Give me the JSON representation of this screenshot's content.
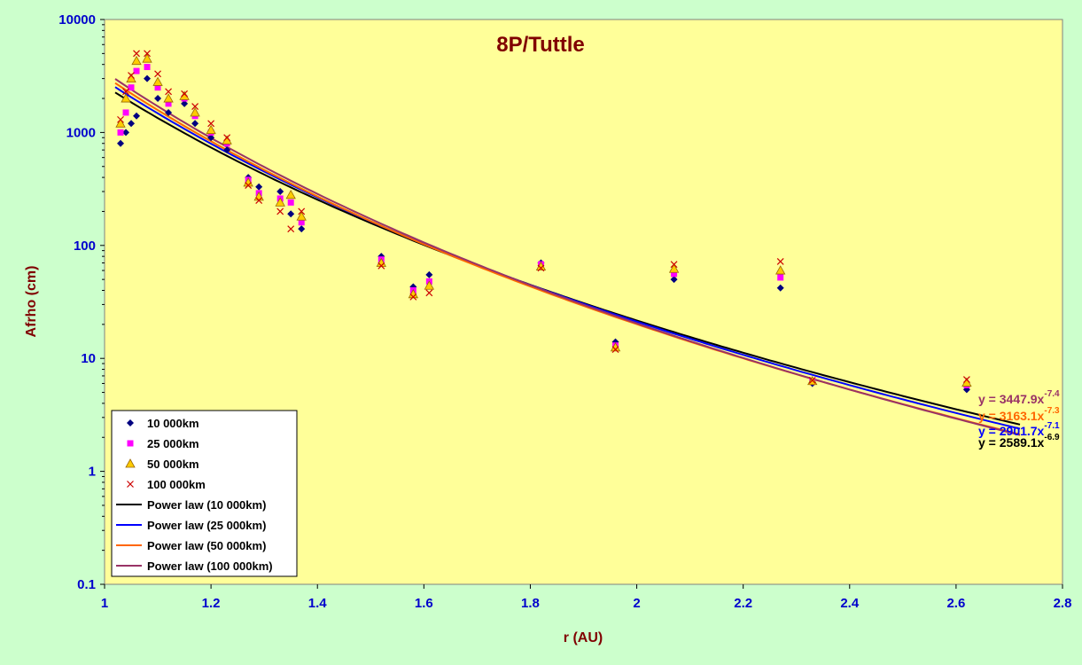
{
  "chart_data": {
    "type": "scatter",
    "title": "8P/Tuttle",
    "xlabel": "r (AU)",
    "ylabel": "Afrho (cm)",
    "xlim": [
      1,
      2.8
    ],
    "ylim": [
      0.1,
      10000
    ],
    "yscale": "log",
    "x_ticks": [
      "1",
      "1.2",
      "1.4",
      "1.6",
      "1.8",
      "2",
      "2.2",
      "2.4",
      "2.6",
      "2.8"
    ],
    "y_ticks": [
      "0.1",
      "1",
      "10",
      "100",
      "1000",
      "10000"
    ],
    "grid": false,
    "legend_position": "bottom-left",
    "colors": {
      "page_bg": "#ccffcc",
      "plot_bg": "#ffff99",
      "title": "#800000",
      "axis_labels": "#800000",
      "tick_labels": "#0000cc"
    },
    "series": [
      {
        "name": "10 000km",
        "marker": "diamond",
        "color": "#000080",
        "x": [
          1.03,
          1.04,
          1.05,
          1.06,
          1.08,
          1.1,
          1.12,
          1.15,
          1.17,
          1.2,
          1.23,
          1.27,
          1.29,
          1.33,
          1.35,
          1.37,
          1.52,
          1.58,
          1.61,
          1.82,
          1.96,
          2.07,
          2.27,
          2.33,
          2.62
        ],
        "y": [
          800,
          1000,
          1200,
          1400,
          3000,
          2000,
          1500,
          1800,
          1200,
          900,
          700,
          400,
          330,
          300,
          190,
          140,
          80,
          43,
          55,
          70,
          14,
          50,
          42,
          6,
          5.3
        ]
      },
      {
        "name": "25 000km",
        "marker": "square",
        "color": "#ff00ff",
        "x": [
          1.03,
          1.04,
          1.05,
          1.06,
          1.08,
          1.1,
          1.12,
          1.15,
          1.17,
          1.2,
          1.23,
          1.27,
          1.29,
          1.33,
          1.35,
          1.37,
          1.52,
          1.58,
          1.61,
          1.82,
          1.96,
          2.07,
          2.27,
          2.33,
          2.62
        ],
        "y": [
          1000,
          1500,
          2500,
          3500,
          3800,
          2500,
          1800,
          2000,
          1400,
          1000,
          800,
          380,
          290,
          260,
          240,
          160,
          75,
          40,
          48,
          68,
          13,
          56,
          52,
          6.2,
          5.8
        ]
      },
      {
        "name": "50 000km",
        "marker": "triangle",
        "color": "#ffcc00",
        "x": [
          1.03,
          1.04,
          1.05,
          1.06,
          1.08,
          1.1,
          1.12,
          1.15,
          1.17,
          1.2,
          1.23,
          1.27,
          1.29,
          1.33,
          1.35,
          1.37,
          1.52,
          1.58,
          1.61,
          1.82,
          1.96,
          2.07,
          2.27,
          2.33,
          2.62
        ],
        "y": [
          1200,
          2000,
          3000,
          4300,
          4500,
          2800,
          2000,
          2100,
          1500,
          1050,
          850,
          360,
          270,
          240,
          280,
          180,
          70,
          37,
          44,
          65,
          12.5,
          62,
          60,
          6.3,
          6.1
        ]
      },
      {
        "name": "100 000km",
        "marker": "x",
        "color": "#cc0000",
        "x": [
          1.03,
          1.04,
          1.05,
          1.06,
          1.08,
          1.1,
          1.12,
          1.15,
          1.17,
          1.2,
          1.23,
          1.27,
          1.29,
          1.33,
          1.35,
          1.37,
          1.52,
          1.58,
          1.61,
          1.82,
          1.96,
          2.07,
          2.27,
          2.33,
          2.62
        ],
        "y": [
          1300,
          2300,
          3200,
          5000,
          5000,
          3300,
          2300,
          2200,
          1700,
          1200,
          900,
          340,
          250,
          200,
          140,
          200,
          66,
          35,
          38,
          63,
          12,
          68,
          72,
          6.4,
          6.5
        ]
      }
    ],
    "fits": [
      {
        "name": "Power law (10 000km)",
        "color": "#000000",
        "a": 2589.1,
        "b": -6.9,
        "equation": "y = 2589.1x",
        "exponent": "-6.9"
      },
      {
        "name": "Power law (25 000km)",
        "color": "#0000ff",
        "a": 2901.7,
        "b": -7.1,
        "equation": "y = 2901.7x",
        "exponent": "-7.1"
      },
      {
        "name": "Power law (50 000km)",
        "color": "#ff6600",
        "a": 3163.1,
        "b": -7.3,
        "equation": "y = 3163.1x",
        "exponent": "-7.3"
      },
      {
        "name": "Power law (100 000km)",
        "color": "#993366",
        "a": 3447.9,
        "b": -7.4,
        "equation": "y = 3447.9x",
        "exponent": "-7.4"
      }
    ]
  }
}
